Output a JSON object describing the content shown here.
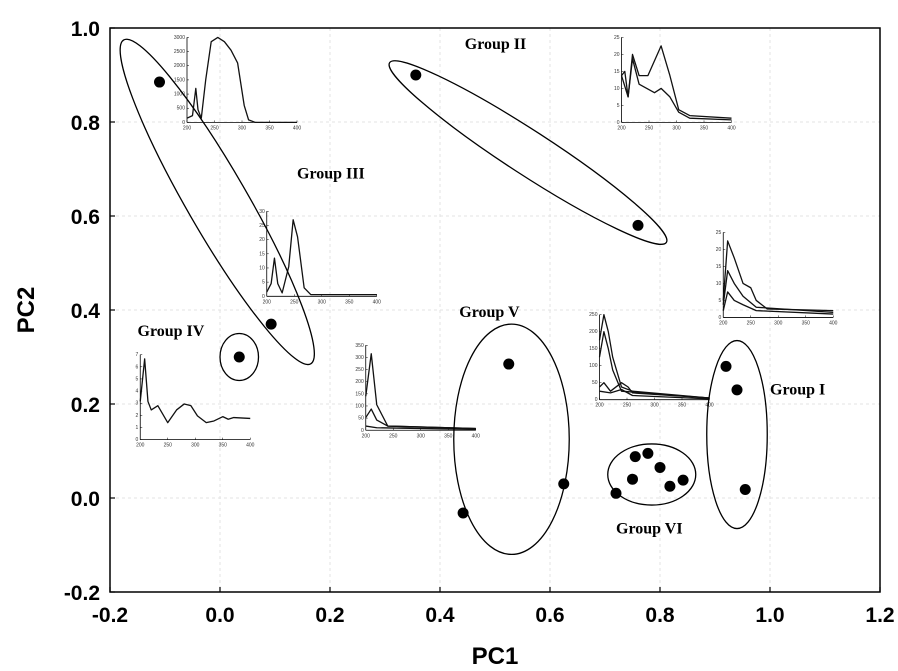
{
  "chart_data": {
    "type": "scatter",
    "title": "",
    "xlabel": "PC1",
    "ylabel": "PC2",
    "xlim": [
      -0.2,
      1.2
    ],
    "ylim": [
      -0.2,
      1.0
    ],
    "xticks": [
      "-0.2",
      "0.0",
      "0.2",
      "0.4",
      "0.6",
      "0.8",
      "1.0",
      "1.2"
    ],
    "yticks": [
      "-0.2",
      "0.0",
      "0.2",
      "0.4",
      "0.6",
      "0.8",
      "1.0"
    ],
    "grid": true,
    "groups": [
      {
        "label": "Group I",
        "points": [
          [
            0.92,
            0.28
          ],
          [
            0.94,
            0.23
          ],
          [
            0.955,
            0.018
          ]
        ],
        "ellipse": {
          "cx": 0.94,
          "cy": 0.135,
          "rx": 0.055,
          "ry": 0.2
        }
      },
      {
        "label": "Group II",
        "points": [
          [
            0.356,
            0.9
          ],
          [
            0.76,
            0.58
          ]
        ],
        "ellipse": {
          "cx": 0.56,
          "cy": 0.735,
          "rx": 0.3,
          "ry": 0.04,
          "angle": 33
        }
      },
      {
        "label": "Group III",
        "points": [
          [
            -0.11,
            0.885
          ],
          [
            0.093,
            0.37
          ]
        ],
        "ellipse": {
          "cx": -0.005,
          "cy": 0.63,
          "rx": 0.34,
          "ry": 0.055,
          "angle": 60
        }
      },
      {
        "label": "Group IV",
        "points": [
          [
            0.035,
            0.3
          ]
        ],
        "ellipse": {
          "cx": 0.035,
          "cy": 0.3,
          "rx": 0.035,
          "ry": 0.05
        }
      },
      {
        "label": "Group V",
        "points": [
          [
            0.525,
            0.285
          ],
          [
            0.625,
            0.03
          ],
          [
            0.442,
            -0.032
          ]
        ],
        "ellipse": {
          "cx": 0.53,
          "cy": 0.125,
          "rx": 0.105,
          "ry": 0.245
        }
      },
      {
        "label": "Group VI",
        "points": [
          [
            0.72,
            0.01
          ],
          [
            0.75,
            0.04
          ],
          [
            0.755,
            0.088
          ],
          [
            0.778,
            0.095
          ],
          [
            0.8,
            0.065
          ],
          [
            0.818,
            0.025
          ],
          [
            0.842,
            0.038
          ]
        ],
        "ellipse": {
          "cx": 0.785,
          "cy": 0.05,
          "rx": 0.08,
          "ry": 0.065
        }
      }
    ],
    "group_label_positions": {
      "Group I": [
        1.0,
        0.22
      ],
      "Group II": [
        0.445,
        0.955
      ],
      "Group III": [
        0.14,
        0.68
      ],
      "Group IV": [
        -0.15,
        0.345
      ],
      "Group V": [
        0.435,
        0.385
      ],
      "Group VI": [
        0.72,
        -0.075
      ]
    },
    "inset_spectra": [
      {
        "name": "group-iii-top",
        "anchor": [
          -0.06,
          0.98
        ],
        "xticks": [
          "200",
          "250",
          "300",
          "350",
          "400"
        ],
        "yticks": [
          "3000",
          "2500",
          "2000",
          "1500",
          "1000",
          "500",
          "0"
        ],
        "curves": [
          [
            [
              0,
              5
            ],
            [
              0.05,
              8
            ],
            [
              0.08,
              40
            ],
            [
              0.1,
              15
            ],
            [
              0.13,
              5
            ],
            [
              0.17,
              50
            ],
            [
              0.22,
              95
            ],
            [
              0.28,
              100
            ],
            [
              0.34,
              95
            ],
            [
              0.4,
              85
            ],
            [
              0.46,
              70
            ],
            [
              0.52,
              20
            ],
            [
              0.56,
              3
            ],
            [
              0.62,
              0
            ],
            [
              1,
              0
            ]
          ]
        ]
      },
      {
        "name": "group-iii-mid",
        "anchor": [
          0.085,
          0.61
        ],
        "xticks": [
          "200",
          "250",
          "300",
          "350",
          "400"
        ],
        "yticks": [
          "30",
          "25",
          "20",
          "15",
          "10",
          "5",
          "0"
        ],
        "curves": [
          [
            [
              0,
              5
            ],
            [
              0.04,
              15
            ],
            [
              0.07,
              45
            ],
            [
              0.1,
              15
            ],
            [
              0.14,
              4
            ],
            [
              0.2,
              35
            ],
            [
              0.24,
              90
            ],
            [
              0.28,
              70
            ],
            [
              0.34,
              10
            ],
            [
              0.4,
              2
            ],
            [
              1,
              2
            ]
          ]
        ]
      },
      {
        "name": "group-iv",
        "anchor": [
          -0.145,
          0.305
        ],
        "xticks": [
          "200",
          "250",
          "300",
          "350",
          "400"
        ],
        "yticks": [
          "7",
          "6",
          "5",
          "4",
          "3",
          "2",
          "1",
          "0"
        ],
        "curves": [
          [
            [
              0,
              45
            ],
            [
              0.04,
              95
            ],
            [
              0.07,
              45
            ],
            [
              0.1,
              35
            ],
            [
              0.16,
              40
            ],
            [
              0.25,
              20
            ],
            [
              0.33,
              35
            ],
            [
              0.4,
              42
            ],
            [
              0.46,
              40
            ],
            [
              0.52,
              28
            ],
            [
              0.6,
              20
            ],
            [
              0.67,
              22
            ],
            [
              0.75,
              27
            ],
            [
              0.8,
              24
            ],
            [
              0.85,
              26
            ],
            [
              1,
              25
            ]
          ]
        ]
      },
      {
        "name": "group-v",
        "anchor": [
          0.265,
          0.325
        ],
        "xticks": [
          "200",
          "250",
          "300",
          "350",
          "400"
        ],
        "yticks": [
          "350",
          "300",
          "250",
          "200",
          "150",
          "100",
          "50",
          "0"
        ],
        "curves": [
          [
            [
              0,
              40
            ],
            [
              0.05,
              90
            ],
            [
              0.1,
              30
            ],
            [
              0.2,
              5
            ],
            [
              1,
              2
            ]
          ],
          [
            [
              0,
              15
            ],
            [
              0.05,
              25
            ],
            [
              0.1,
              12
            ],
            [
              0.2,
              5
            ],
            [
              1,
              2
            ]
          ],
          [
            [
              0,
              5
            ],
            [
              0.1,
              3
            ],
            [
              1,
              1
            ]
          ]
        ]
      },
      {
        "name": "group-vi",
        "anchor": [
          0.69,
          0.39
        ],
        "xticks": [
          "200",
          "250",
          "300",
          "350",
          "400"
        ],
        "yticks": [
          "250",
          "200",
          "150",
          "100",
          "50",
          "0"
        ],
        "curves": [
          [
            [
              0,
              70
            ],
            [
              0.04,
              100
            ],
            [
              0.08,
              80
            ],
            [
              0.12,
              50
            ],
            [
              0.2,
              15
            ],
            [
              0.3,
              10
            ],
            [
              1,
              2
            ]
          ],
          [
            [
              0,
              50
            ],
            [
              0.04,
              80
            ],
            [
              0.08,
              60
            ],
            [
              0.12,
              35
            ],
            [
              0.2,
              10
            ],
            [
              1,
              2
            ]
          ],
          [
            [
              0,
              15
            ],
            [
              0.04,
              20
            ],
            [
              0.1,
              10
            ],
            [
              0.2,
              20
            ],
            [
              0.26,
              15
            ],
            [
              0.3,
              8
            ],
            [
              1,
              2
            ]
          ],
          [
            [
              0,
              10
            ],
            [
              0.1,
              8
            ],
            [
              0.2,
              12
            ],
            [
              0.3,
              5
            ],
            [
              1,
              1
            ]
          ]
        ]
      },
      {
        "name": "group-i",
        "anchor": [
          0.915,
          0.565
        ],
        "xticks": [
          "200",
          "250",
          "300",
          "350",
          "400"
        ],
        "yticks": [
          "25",
          "20",
          "15",
          "10",
          "5",
          "0"
        ],
        "curves": [
          [
            [
              0,
              20
            ],
            [
              0.04,
              90
            ],
            [
              0.1,
              70
            ],
            [
              0.18,
              40
            ],
            [
              0.25,
              35
            ],
            [
              0.3,
              20
            ],
            [
              0.4,
              10
            ],
            [
              1,
              8
            ]
          ],
          [
            [
              0,
              15
            ],
            [
              0.04,
              55
            ],
            [
              0.1,
              40
            ],
            [
              0.18,
              25
            ],
            [
              0.3,
              12
            ],
            [
              1,
              6
            ]
          ],
          [
            [
              0,
              8
            ],
            [
              0.04,
              30
            ],
            [
              0.1,
              20
            ],
            [
              0.18,
              15
            ],
            [
              0.3,
              8
            ],
            [
              1,
              4
            ]
          ]
        ]
      },
      {
        "name": "group-ii",
        "anchor": [
          0.73,
          0.98
        ],
        "xticks": [
          "200",
          "250",
          "300",
          "350",
          "400"
        ],
        "yticks": [
          "25",
          "20",
          "15",
          "10",
          "5",
          "0"
        ],
        "curves": [
          [
            [
              0,
              55
            ],
            [
              0.03,
              60
            ],
            [
              0.06,
              30
            ],
            [
              0.1,
              80
            ],
            [
              0.16,
              55
            ],
            [
              0.24,
              55
            ],
            [
              0.36,
              90
            ],
            [
              0.44,
              55
            ],
            [
              0.52,
              15
            ],
            [
              0.62,
              8
            ],
            [
              1,
              5
            ]
          ],
          [
            [
              0,
              55
            ],
            [
              0.06,
              30
            ],
            [
              0.1,
              75
            ],
            [
              0.16,
              45
            ],
            [
              0.3,
              35
            ],
            [
              0.36,
              40
            ],
            [
              0.44,
              30
            ],
            [
              0.52,
              12
            ],
            [
              0.62,
              5
            ],
            [
              1,
              3
            ]
          ]
        ]
      }
    ]
  }
}
